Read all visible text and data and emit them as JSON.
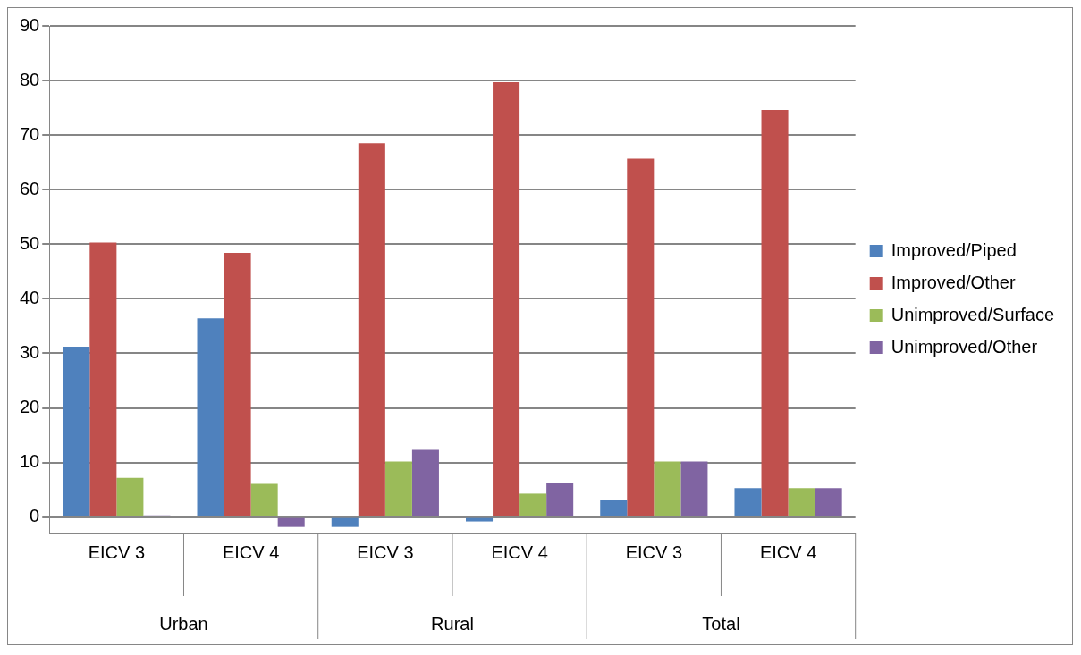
{
  "chart_data": {
    "type": "bar",
    "categories": [
      "EICV 3",
      "EICV 4",
      "EICV 3",
      "EICV 4",
      "EICV 3",
      "EICV 4"
    ],
    "annotations": [
      "Urban",
      "Rural",
      "Total"
    ],
    "series": [
      {
        "name": "Improved/Piped",
        "color": "#4f81bd",
        "values": [
          31.2,
          36.4,
          -1.8,
          -0.8,
          3.2,
          5.3
        ]
      },
      {
        "name": "Improved/Other",
        "color": "#c0504d",
        "values": [
          50.3,
          48.4,
          68.5,
          79.7,
          65.7,
          74.6
        ]
      },
      {
        "name": "Unimproved/Surface",
        "color": "#9bbb59",
        "values": [
          7.2,
          6.1,
          10.2,
          4.3,
          10.2,
          5.3
        ]
      },
      {
        "name": "Unimproved/Other",
        "color": "#8064a2",
        "values": [
          0.3,
          -1.8,
          12.3,
          6.2,
          10.2,
          5.3
        ]
      }
    ],
    "ylim": [
      -3,
      90
    ],
    "yticks": [
      0,
      10,
      20,
      30,
      40,
      50,
      60,
      70,
      80,
      90
    ],
    "grid": "y",
    "legend": "right"
  }
}
